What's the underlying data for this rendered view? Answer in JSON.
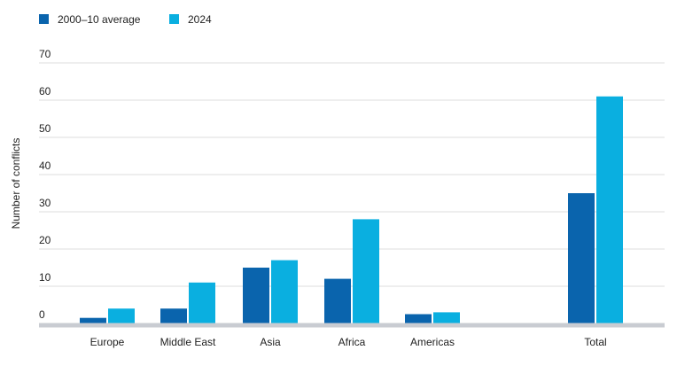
{
  "chart_data": {
    "type": "bar",
    "categories": [
      "Europe",
      "Middle East",
      "Asia",
      "Africa",
      "Americas",
      "Total"
    ],
    "series": [
      {
        "name": "2000–10 average",
        "color": "#0a64ad",
        "values": [
          1.5,
          4,
          15,
          12,
          2.5,
          35
        ]
      },
      {
        "name": "2024",
        "color": "#0aafe0",
        "values": [
          4,
          11,
          17,
          28,
          3,
          61
        ]
      }
    ],
    "ylabel": "Number of conflicts",
    "xlabel": "",
    "ylim": [
      0,
      70
    ],
    "yticks": [
      0,
      10,
      20,
      30,
      40,
      50,
      60,
      70
    ],
    "grid": true,
    "legend": "top-left"
  }
}
